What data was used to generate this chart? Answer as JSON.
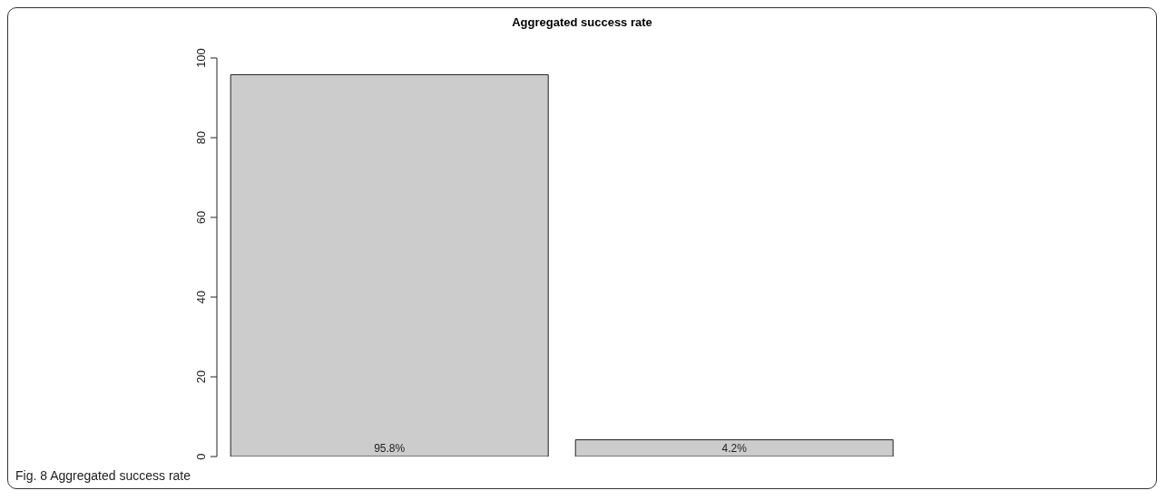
{
  "chart_data": {
    "type": "bar",
    "title": "Aggregated success rate",
    "categories": [
      null,
      null
    ],
    "values": [
      95.8,
      4.2
    ],
    "color": "#cccccc",
    "value_labels": [
      "95.8%",
      "4.2%"
    ],
    "ylim": [
      0,
      100
    ],
    "yticks": [
      0,
      20,
      40,
      60,
      80,
      100
    ],
    "grid": false,
    "annotations": [
      "Fig. 8 Aggregated success rate"
    ]
  }
}
